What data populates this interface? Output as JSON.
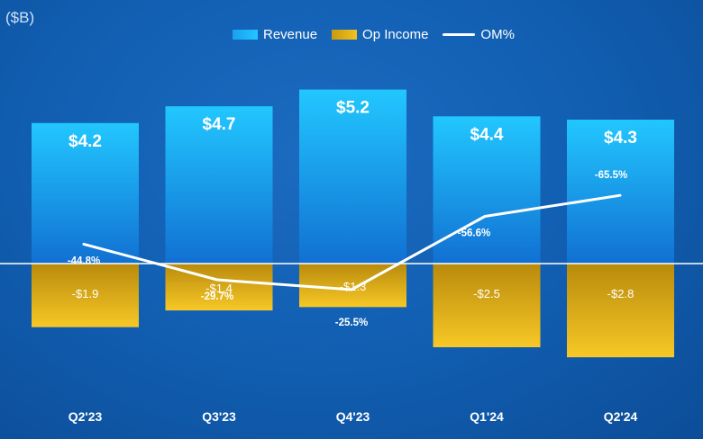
{
  "unit_label": "($B)",
  "legend": {
    "revenue": "Revenue",
    "op_income": "Op Income",
    "om": "OM%"
  },
  "colors": {
    "background": "#1260b4",
    "revenue_top": "#22c7ff",
    "revenue_bottom": "#1170d2",
    "op_income_top": "#b88a0c",
    "op_income_bottom": "#f7c826",
    "om_line": "#ffffff"
  },
  "chart_data": {
    "type": "bar",
    "categories": [
      "Q2'23",
      "Q3'23",
      "Q4'23",
      "Q1'24",
      "Q2'24"
    ],
    "series": [
      {
        "name": "Revenue",
        "values": [
          4.2,
          4.7,
          5.2,
          4.4,
          4.3
        ],
        "labels": [
          "$4.2",
          "$4.7",
          "$5.2",
          "$4.4",
          "$4.3"
        ]
      },
      {
        "name": "Op Income",
        "values": [
          -1.9,
          -1.4,
          -1.3,
          -2.5,
          -2.8
        ],
        "labels": [
          "-$1.9",
          "-$1.4",
          "-$1.3",
          "-$2.5",
          "-$2.8"
        ]
      },
      {
        "name": "OM%",
        "type": "line",
        "values": [
          -44.8,
          -29.7,
          -25.5,
          -56.6,
          -65.5
        ],
        "labels": [
          "-44.8%",
          "-29.7%",
          "-25.5%",
          "-56.6%",
          "-65.5%"
        ]
      }
    ],
    "ylabel": "($B)",
    "legend_position": "top-center",
    "grid": false
  }
}
